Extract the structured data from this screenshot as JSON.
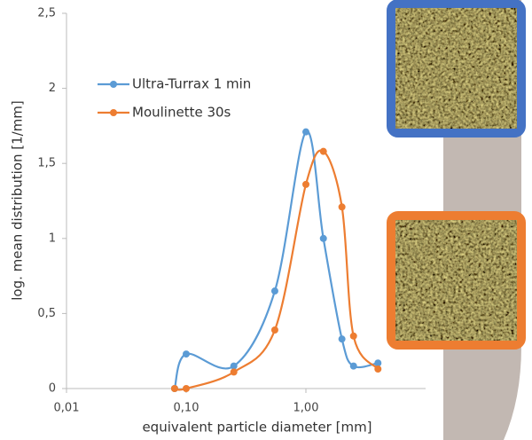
{
  "chart_data": {
    "type": "line",
    "xlabel": "equivalent particle diameter [mm]",
    "ylabel": "log. mean distribution [1/mm]",
    "x": [
      0.08,
      0.1,
      0.25,
      0.55,
      1.0,
      1.4,
      2.0,
      2.5,
      4.0
    ],
    "series": [
      {
        "name": "Ultra-Turrax 1 min",
        "color": "#5b9bd5",
        "values": [
          0,
          0.23,
          0.15,
          0.65,
          1.71,
          1.0,
          0.33,
          0.15,
          0.17
        ]
      },
      {
        "name": "Moulinette 30s",
        "color": "#ed7d31",
        "values": [
          0,
          0,
          0.11,
          0.39,
          1.36,
          1.58,
          1.21,
          0.35,
          0.13
        ]
      }
    ],
    "xscale": "log",
    "xlim": [
      0.01,
      10
    ],
    "xticks": [
      {
        "value": 0.01,
        "label": "0,01"
      },
      {
        "value": 0.1,
        "label": "0,10"
      },
      {
        "value": 1,
        "label": "1,00"
      }
    ],
    "ylim": [
      0,
      2.5
    ],
    "yticks": [
      0,
      {
        "value": 0.5,
        "label": "0,5"
      },
      1,
      {
        "value": 1.5,
        "label": "1,5"
      },
      2,
      {
        "value": 2.5,
        "label": "2,5"
      }
    ],
    "grid": false,
    "legend": "upper left"
  }
}
